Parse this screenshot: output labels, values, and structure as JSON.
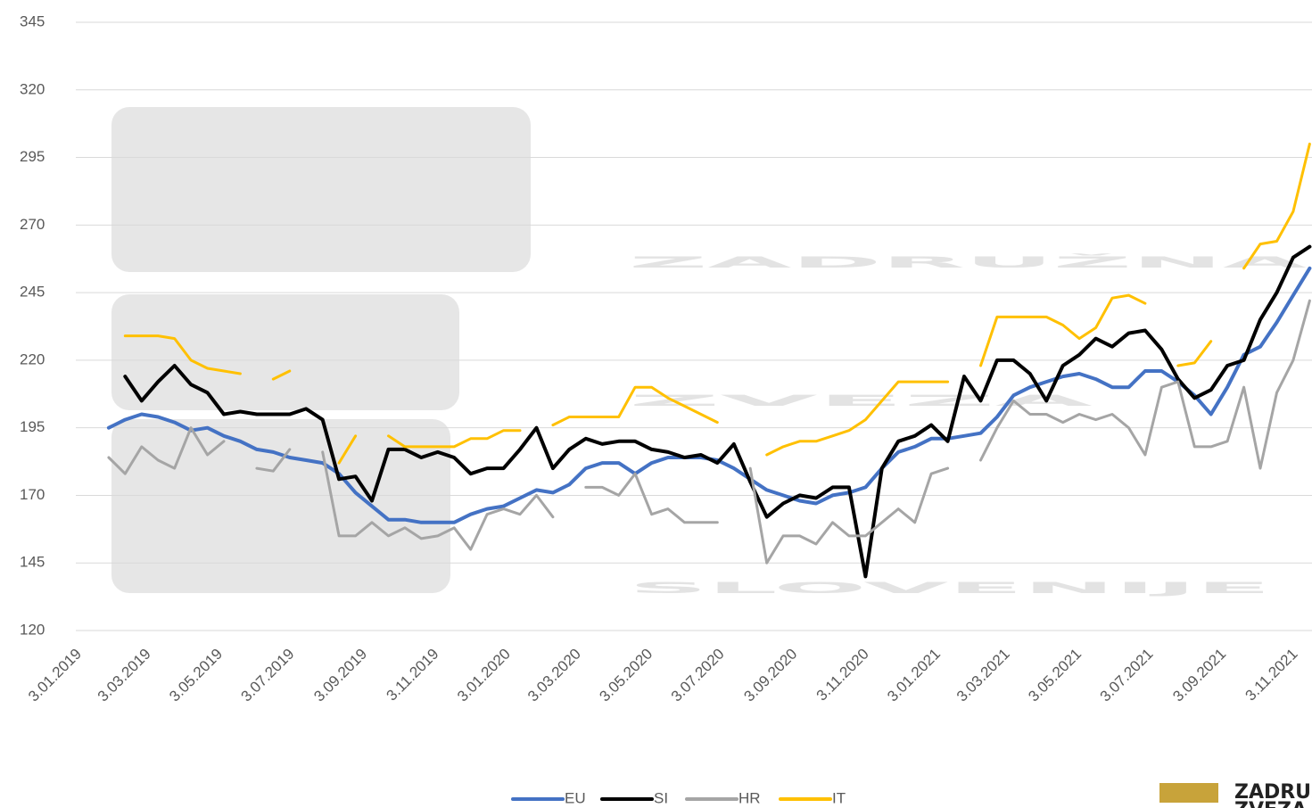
{
  "chart_data": {
    "type": "line",
    "watermark": [
      "ZADRUŽNA",
      "ZVEZA",
      "SLOVENIJE"
    ],
    "logo": [
      "ZADRUŽNA",
      "ZVEZA"
    ],
    "x": [
      "2019-01-31",
      "2019-02-14",
      "2019-02-28",
      "2019-03-14",
      "2019-03-28",
      "2019-04-11",
      "2019-04-25",
      "2019-05-09",
      "2019-05-23",
      "2019-06-06",
      "2019-06-20",
      "2019-07-04",
      "2019-07-18",
      "2019-08-01",
      "2019-08-15",
      "2019-08-29",
      "2019-09-12",
      "2019-09-26",
      "2019-10-10",
      "2019-10-24",
      "2019-11-07",
      "2019-11-21",
      "2019-12-05",
      "2019-12-19",
      "2020-01-02",
      "2020-01-16",
      "2020-01-30",
      "2020-02-13",
      "2020-02-27",
      "2020-03-12",
      "2020-03-26",
      "2020-04-09",
      "2020-04-23",
      "2020-05-07",
      "2020-05-21",
      "2020-06-04",
      "2020-06-18",
      "2020-07-02",
      "2020-07-16",
      "2020-07-30",
      "2020-08-13",
      "2020-08-27",
      "2020-09-10",
      "2020-09-24",
      "2020-10-08",
      "2020-10-22",
      "2020-11-05",
      "2020-11-19",
      "2020-12-03",
      "2020-12-17",
      "2020-12-31",
      "2021-01-14",
      "2021-01-28",
      "2021-02-11",
      "2021-02-25",
      "2021-03-11",
      "2021-03-25",
      "2021-04-08",
      "2021-04-22",
      "2021-05-06",
      "2021-05-20",
      "2021-06-03",
      "2021-06-17",
      "2021-07-01",
      "2021-07-15",
      "2021-07-29",
      "2021-08-12",
      "2021-08-26",
      "2021-09-09",
      "2021-09-23",
      "2021-10-07",
      "2021-10-21",
      "2021-11-04",
      "2021-11-18"
    ],
    "series": [
      {
        "name": "EU",
        "color": "#4472c4",
        "values": [
          195,
          198,
          200,
          199,
          197,
          194,
          195,
          192,
          190,
          187,
          186,
          184,
          183,
          182,
          178,
          171,
          166,
          161,
          161,
          160,
          160,
          160,
          163,
          165,
          166,
          169,
          172,
          171,
          174,
          180,
          182,
          182,
          178,
          182,
          184,
          184,
          184,
          183,
          180,
          176,
          172,
          170,
          168,
          167,
          170,
          171,
          173,
          180,
          186,
          188,
          191,
          191,
          192,
          193,
          199,
          207,
          210,
          212,
          214,
          215,
          213,
          210,
          210,
          216,
          216,
          212,
          207,
          200,
          210,
          222,
          225,
          234,
          244,
          254
        ]
      },
      {
        "name": "SI",
        "color": "#000000",
        "values": [
          null,
          214,
          205,
          212,
          218,
          211,
          208,
          200,
          201,
          200,
          200,
          200,
          202,
          198,
          176,
          177,
          168,
          187,
          187,
          184,
          186,
          184,
          178,
          180,
          180,
          187,
          195,
          180,
          187,
          191,
          189,
          190,
          190,
          187,
          186,
          184,
          185,
          182,
          189,
          175,
          162,
          167,
          170,
          169,
          173,
          173,
          140,
          180,
          190,
          192,
          196,
          190,
          214,
          205,
          220,
          220,
          215,
          205,
          218,
          222,
          228,
          225,
          230,
          231,
          224,
          213,
          206,
          209,
          218,
          220,
          235,
          245,
          258,
          262
        ]
      },
      {
        "name": "HR",
        "color": "#a5a5a5",
        "values": [
          184,
          178,
          188,
          183,
          180,
          195,
          185,
          190,
          null,
          180,
          179,
          187,
          null,
          186,
          155,
          155,
          160,
          155,
          158,
          154,
          155,
          158,
          150,
          163,
          165,
          163,
          170,
          162,
          null,
          173,
          173,
          170,
          178,
          163,
          165,
          160,
          160,
          160,
          null,
          180,
          145,
          155,
          155,
          152,
          160,
          155,
          155,
          160,
          165,
          160,
          178,
          180,
          null,
          183,
          195,
          205,
          200,
          200,
          197,
          200,
          198,
          200,
          195,
          185,
          210,
          212,
          188,
          188,
          190,
          210,
          180,
          208,
          220,
          242
        ]
      },
      {
        "name": "IT",
        "color": "#ffc000",
        "values": [
          null,
          229,
          229,
          229,
          228,
          220,
          217,
          216,
          215,
          null,
          213,
          216,
          null,
          null,
          182,
          192,
          null,
          192,
          188,
          188,
          188,
          188,
          191,
          191,
          194,
          194,
          null,
          196,
          199,
          199,
          199,
          199,
          210,
          210,
          206,
          203,
          200,
          197,
          null,
          null,
          185,
          188,
          190,
          190,
          192,
          194,
          198,
          205,
          212,
          212,
          212,
          212,
          null,
          218,
          236,
          236,
          236,
          236,
          233,
          228,
          232,
          243,
          244,
          241,
          null,
          218,
          219,
          227,
          null,
          254,
          263,
          264,
          275,
          300
        ]
      }
    ],
    "xlim": [
      "2019-01-03",
      "2021-11-20"
    ],
    "xticks": [
      {
        "value": "2019-01-03",
        "label": "3.01.2019"
      },
      {
        "value": "2019-03-03",
        "label": "3.03.2019"
      },
      {
        "value": "2019-05-03",
        "label": "3.05.2019"
      },
      {
        "value": "2019-07-03",
        "label": "3.07.2019"
      },
      {
        "value": "2019-09-03",
        "label": "3.09.2019"
      },
      {
        "value": "2019-11-03",
        "label": "3.11.2019"
      },
      {
        "value": "2020-01-03",
        "label": "3.01.2020"
      },
      {
        "value": "2020-03-03",
        "label": "3.03.2020"
      },
      {
        "value": "2020-05-03",
        "label": "3.05.2020"
      },
      {
        "value": "2020-07-03",
        "label": "3.07.2020"
      },
      {
        "value": "2020-09-03",
        "label": "3.09.2020"
      },
      {
        "value": "2020-11-03",
        "label": "3.11.2020"
      },
      {
        "value": "2021-01-03",
        "label": "3.01.2021"
      },
      {
        "value": "2021-03-03",
        "label": "3.03.2021"
      },
      {
        "value": "2021-05-03",
        "label": "3.05.2021"
      },
      {
        "value": "2021-07-03",
        "label": "3.07.2021"
      },
      {
        "value": "2021-09-03",
        "label": "3.09.2021"
      },
      {
        "value": "2021-11-03",
        "label": "3.11.2021"
      }
    ],
    "ylim": [
      120,
      345
    ],
    "yticks": [
      120,
      145,
      170,
      195,
      220,
      245,
      270,
      295,
      320,
      345
    ],
    "grid": true,
    "legend": "bottom"
  }
}
